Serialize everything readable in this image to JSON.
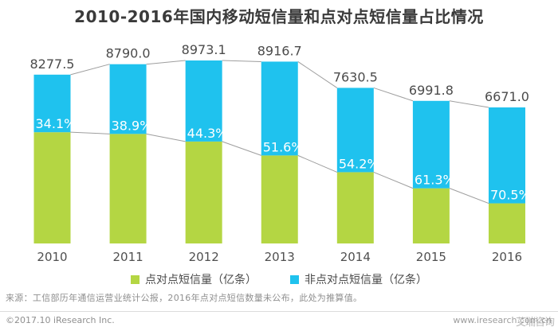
{
  "title": "2010-2016年国内移动短信量和点对点短信量占比情况",
  "chart_data": {
    "type": "bar",
    "stacked": true,
    "categories": [
      "2010",
      "2011",
      "2012",
      "2013",
      "2014",
      "2015",
      "2016"
    ],
    "totals": [
      8277.5,
      8790.0,
      8973.1,
      8916.7,
      7630.5,
      6991.8,
      6671.0
    ],
    "non_p2p_share_pct": [
      34.1,
      38.9,
      44.3,
      51.6,
      54.2,
      61.3,
      70.5
    ],
    "series": [
      {
        "name": "点对点短信量（亿条）",
        "role": "p2p",
        "color": "#b4d643"
      },
      {
        "name": "非点对点短信量（亿条）",
        "role": "non-p2p",
        "color": "#1fc2ee"
      }
    ],
    "unit": "亿条",
    "legend_position": "bottom",
    "grid": false,
    "value_label_color": "#4b4b4b",
    "share_label_color": "#ffffff",
    "axis_label_color": "#4f4f4f",
    "connector_color": "#9e9e9e"
  },
  "footer": {
    "source_note": "来源：工信部历年通信运营业统计公报，2016年点对点短信数量未公布，此处为推算值。",
    "copyright": "©2017.10 iResearch Inc.",
    "website": "www.iresearch.com.cn",
    "watermark": "艾瑞咨询"
  }
}
